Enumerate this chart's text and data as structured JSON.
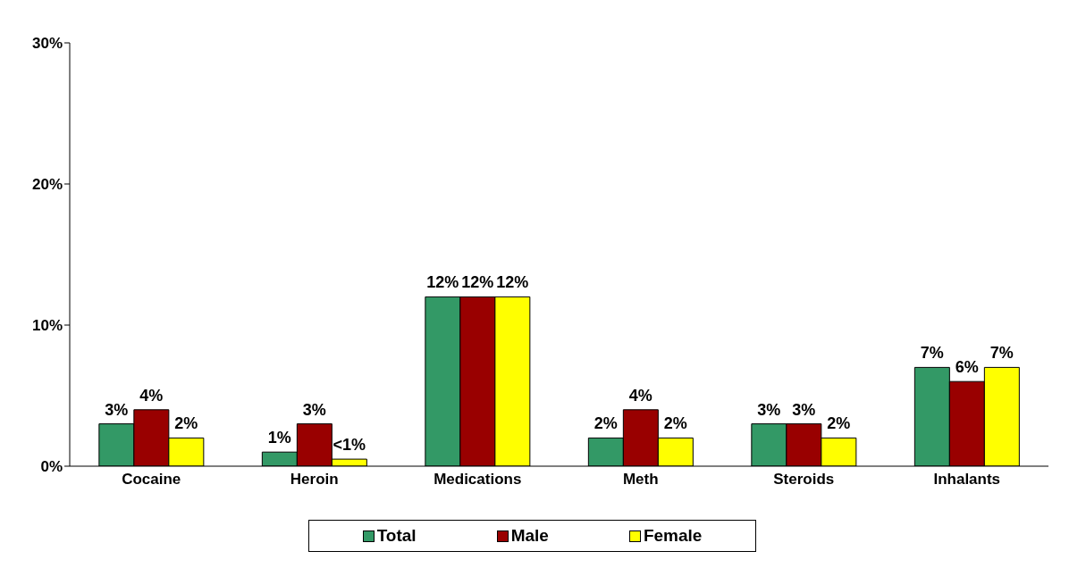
{
  "chart_data": {
    "type": "bar",
    "categories": [
      "Cocaine",
      "Heroin",
      "Medications",
      "Meth",
      "Steroids",
      "Inhalants"
    ],
    "series": [
      {
        "name": "Total",
        "color": "#339966",
        "values": [
          3,
          1,
          12,
          2,
          3,
          7
        ],
        "value_labels": [
          "3%",
          "1%",
          "12%",
          "2%",
          "3%",
          "7%"
        ]
      },
      {
        "name": "Male",
        "color": "#990000",
        "values": [
          4,
          3,
          12,
          4,
          3,
          6
        ],
        "value_labels": [
          "4%",
          "3%",
          "12%",
          "4%",
          "3%",
          "6%"
        ]
      },
      {
        "name": "Female",
        "color": "#ffff00",
        "values": [
          2,
          0.5,
          12,
          2,
          2,
          7
        ],
        "value_labels": [
          "2%",
          "<1%",
          "12%",
          "2%",
          "2%",
          "7%"
        ]
      }
    ],
    "ylim": [
      0,
      30
    ],
    "yticks": [
      {
        "value": 0,
        "label": "0%"
      },
      {
        "value": 10,
        "label": "10%"
      },
      {
        "value": 20,
        "label": "20%"
      },
      {
        "value": 30,
        "label": "30%"
      }
    ],
    "grid": false,
    "legend": "bottom"
  }
}
